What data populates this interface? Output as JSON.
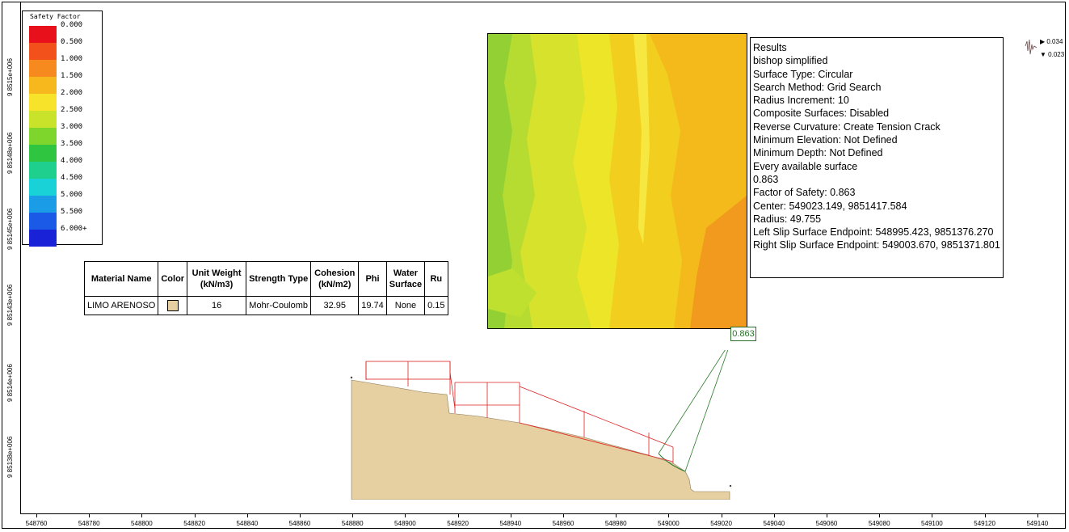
{
  "legend": {
    "title": "Safety Factor",
    "entries": [
      {
        "label": "0.000",
        "color": "#e8101a"
      },
      {
        "label": "0.500",
        "color": "#f3511c"
      },
      {
        "label": "1.000",
        "color": "#f68a1f"
      },
      {
        "label": "1.500",
        "color": "#f6b81d"
      },
      {
        "label": "2.000",
        "color": "#f7e32a"
      },
      {
        "label": "2.500",
        "color": "#c8e32a"
      },
      {
        "label": "3.000",
        "color": "#7ed52c"
      },
      {
        "label": "3.500",
        "color": "#2fc541"
      },
      {
        "label": "4.000",
        "color": "#1fcf8d"
      },
      {
        "label": "4.500",
        "color": "#18d2d8"
      },
      {
        "label": "5.000",
        "color": "#1a9de6"
      },
      {
        "label": "5.500",
        "color": "#1a5ae6"
      },
      {
        "label": "6.000+",
        "color": "#1a22d8"
      }
    ]
  },
  "material_table": {
    "headers": [
      "Material Name",
      "Color",
      "Unit Weight (kN/m3)",
      "Strength Type",
      "Cohesion (kN/m2)",
      "Phi",
      "Water Surface",
      "Ru"
    ],
    "row": {
      "name": "LIMO ARENOSO",
      "color": "#e6cfa0",
      "unit_weight": "16",
      "strength_type": "Mohr-Coulomb",
      "cohesion": "32.95",
      "phi": "19.74",
      "water_surface": "None",
      "ru": "0.15"
    }
  },
  "results": {
    "lines": [
      "Results",
      "bishop simplified",
      "Surface Type: Circular",
      "Search Method: Grid Search",
      "Radius Increment: 10",
      "Composite Surfaces: Disabled",
      "Reverse Curvature: Create Tension Crack",
      "Minimum Elevation: Not Defined",
      "Minimum Depth: Not Defined",
      "Every available surface",
      "0.863",
      "Factor of Safety: 0.863",
      "Center: 549023.149, 9851417.584",
      "Radius: 49.755",
      "Left Slip Surface Endpoint: 548995.423, 9851376.270",
      "Right Slip Surface Endpoint: 549003.670, 9851371.801"
    ]
  },
  "fos_label": "0.863",
  "mini_chart": {
    "top_label": "▶ 0.034",
    "bottom_label": "▼ 0.023"
  },
  "axes": {
    "x_ticks": [
      "548760",
      "548780",
      "548800",
      "548820",
      "548840",
      "548860",
      "548880",
      "548900",
      "548920",
      "548940",
      "548960",
      "548980",
      "549000",
      "549020",
      "549040",
      "549060",
      "549080",
      "549100",
      "549120",
      "549140"
    ],
    "y_ticks": [
      "9 8515e+006",
      "9 85148e+006",
      "9 85145e+006",
      "9 85143e+006",
      "9 8514e+006",
      "9 85138e+006"
    ]
  }
}
